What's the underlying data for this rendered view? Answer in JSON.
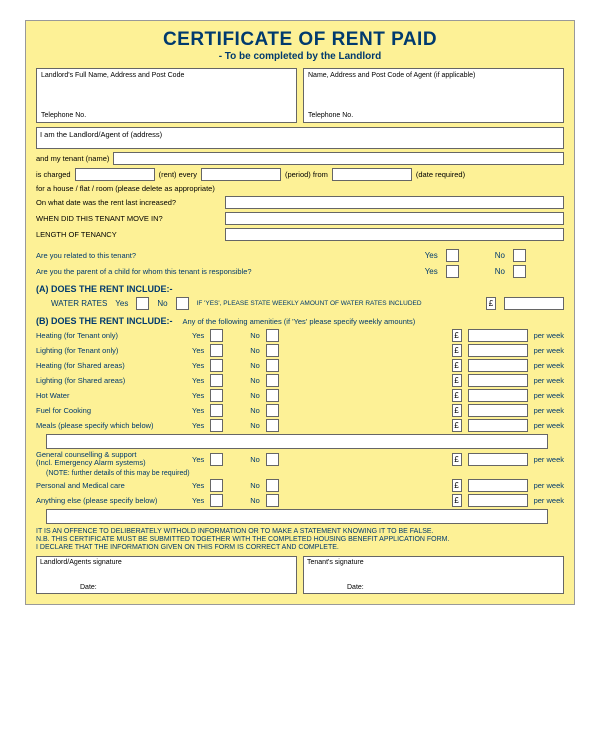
{
  "title": "CERTIFICATE OF RENT PAID",
  "subtitle": "- To be completed by the Landlord",
  "landlord_box": {
    "label": "Landlord's Full Name, Address and Post Code",
    "telephone": "Telephone No."
  },
  "agent_box": {
    "label": "Name, Address and Post Code of Agent (if applicable)",
    "telephone": "Telephone No."
  },
  "addr_line": "I am the Landlord/Agent of (address)",
  "tenant_line": "and my tenant (name)",
  "charge": {
    "l1": "is charged",
    "l2": "(rent) every",
    "l3": "(period) from",
    "l4": "(date required)"
  },
  "house_line": "for a house / flat / room (please delete as appropriate)",
  "q_increase": "On what date was the rent last increased?",
  "q_movein": "WHEN DID THIS TENANT MOVE IN?",
  "q_length": "LENGTH OF TENANCY",
  "yn": {
    "yes": "Yes",
    "no": "No"
  },
  "q_related": "Are you related to this tenant?",
  "q_parent": "Are you the parent of a child for whom this tenant is responsible?",
  "sectionA": "(A) DOES THE RENT INCLUDE:-",
  "water_rates": "WATER RATES",
  "water_note": "IF 'YES', PLEASE STATE WEEKLY AMOUNT OF WATER RATES INCLUDED",
  "sectionB": "(B) DOES THE RENT INCLUDE:-",
  "sectionB_note": "Any of the following amenities (if 'Yes' please specify weekly amounts)",
  "amenities": [
    "Heating (for Tenant only)",
    "Lighting (for Tenant only)",
    "Heating (for Shared areas)",
    "Lighting (for Shared areas)",
    "Hot Water",
    "Fuel for Cooking",
    "Meals (please specify which below)"
  ],
  "gc": "General counselling & support\n(Incl. Emergency Alarm systems)",
  "gc_note": "(NOTE: further details of this may be required)",
  "pm": "Personal and Medical care",
  "ae": "Anything else (please specify below)",
  "perweek": "per week",
  "pound": "£",
  "offence": "IT IS AN OFFENCE TO DELIBERATELY WITHOLD INFORMATION OR TO MAKE A STATEMENT KNOWING IT TO BE FALSE.\nN.B. THIS CERTIFICATE MUST BE SUBMITTED TOGETHER WITH THE COMPLETED HOUSING BENEFIT APPLICATION FORM.\nI DECLARE THAT THE INFORMATION GIVEN ON THIS FORM IS CORRECT AND COMPLETE.",
  "sig1": "Landlord/Agents signature",
  "sig2": "Tenant's signature",
  "date": "Date:"
}
